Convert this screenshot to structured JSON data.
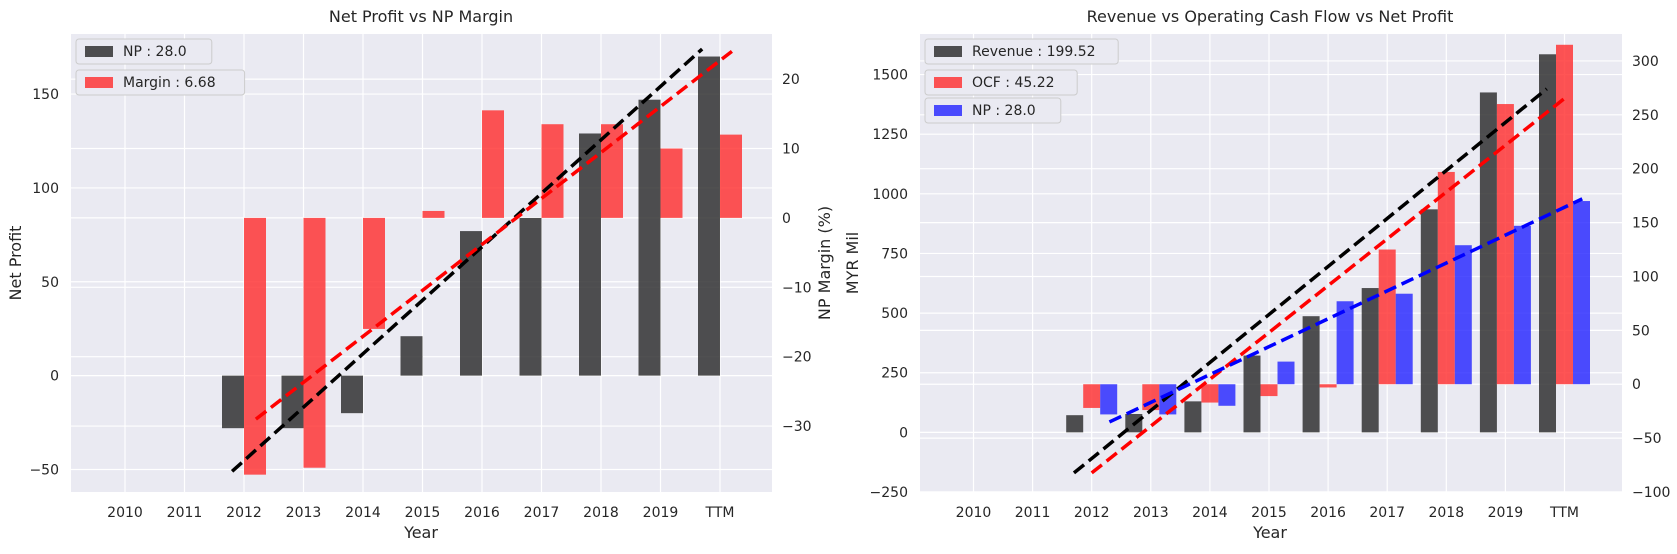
{
  "chart_data": [
    {
      "type": "bar",
      "title": "Net Profit vs NP Margin",
      "xlabel": "Year",
      "ylabel": "Net Profit",
      "y2label": "NP Margin (%)",
      "categories": [
        "2010",
        "2011",
        "2012",
        "2013",
        "2014",
        "2015",
        "2016",
        "2017",
        "2018",
        "2019",
        "TTM"
      ],
      "ylim": [
        -62,
        182
      ],
      "y2lim": [
        -39.5,
        26.5
      ],
      "yticks": [
        -50,
        0,
        50,
        100,
        150
      ],
      "y2ticks": [
        -30,
        -20,
        -10,
        0,
        10,
        20
      ],
      "grid": true,
      "legend_position": "top-left",
      "series": [
        {
          "name": "NP : 28.0",
          "axis": "left",
          "color": "#262626",
          "opacity": 0.8,
          "values": [
            null,
            null,
            -28,
            -28,
            -20,
            21,
            77,
            84,
            129,
            147,
            170
          ]
        },
        {
          "name": "Margin : 6.68",
          "axis": "right",
          "color": "#ff2a2a",
          "opacity": 0.8,
          "values": [
            null,
            null,
            -37,
            -36,
            -16,
            1,
            15.5,
            13.5,
            13.5,
            10,
            12
          ]
        }
      ],
      "trendlines": [
        {
          "axis": "left",
          "color": "#000000",
          "x_start": 1.8,
          "x_end": 9.7,
          "y_start": -51,
          "y_end": 174
        },
        {
          "axis": "right",
          "color": "#ff0000",
          "x_start": 2.2,
          "x_end": 10.2,
          "y_start": -29,
          "y_end": 24
        }
      ]
    },
    {
      "type": "bar",
      "title": "Revenue vs Operating Cash Flow vs Net Profit",
      "xlabel": "Year",
      "ylabel": "MYR Mil",
      "categories": [
        "2010",
        "2011",
        "2012",
        "2013",
        "2014",
        "2015",
        "2016",
        "2017",
        "2018",
        "2019",
        "TTM"
      ],
      "ylim": [
        -250,
        1670
      ],
      "y2lim": [
        -100,
        325
      ],
      "yticks": [
        -250,
        0,
        250,
        500,
        750,
        1000,
        1250,
        1500
      ],
      "y2ticks": [
        -100,
        -50,
        0,
        50,
        100,
        150,
        200,
        250,
        300
      ],
      "grid": true,
      "legend_position": "top-left",
      "series": [
        {
          "name": "Revenue : 199.52",
          "axis": "left",
          "color": "#262626",
          "opacity": 0.8,
          "values": [
            null,
            null,
            72,
            77,
            130,
            322,
            487,
            605,
            935,
            1425,
            1585
          ]
        },
        {
          "name": "OCF : 45.22",
          "axis": "right",
          "color": "#ff2a2a",
          "opacity": 0.8,
          "values": [
            null,
            null,
            -22,
            -24,
            -17,
            -11,
            -3,
            125,
            197,
            260,
            315
          ]
        },
        {
          "name": "NP : 28.0",
          "axis": "right",
          "color": "#2222ff",
          "opacity": 0.8,
          "values": [
            null,
            null,
            -28,
            -28,
            -20,
            21,
            77,
            84,
            129,
            147,
            170
          ]
        }
      ],
      "trendlines": [
        {
          "axis": "left",
          "color": "#000000",
          "x_start": 1.7,
          "x_end": 9.7,
          "y_start": -170,
          "y_end": 1440
        },
        {
          "axis": "left",
          "color": "#ff0000",
          "x_start": 2.0,
          "x_end": 10.0,
          "y_start": -170,
          "y_end": 1400
        },
        {
          "axis": "right",
          "color": "#0000ff",
          "x_start": 2.3,
          "x_end": 10.3,
          "y_start": -35,
          "y_end": 172
        }
      ]
    }
  ]
}
